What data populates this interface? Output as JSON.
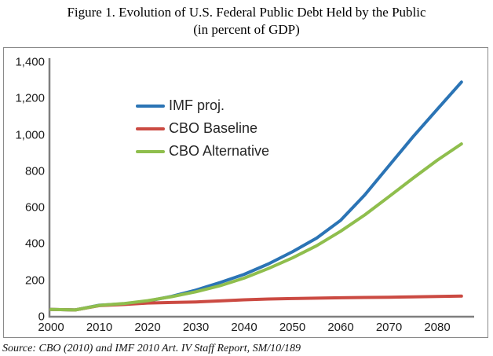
{
  "title": {
    "line1": "Figure 1. Evolution of U.S. Federal Public Debt Held by the Public",
    "line2": "(in percent of GDP)"
  },
  "source": "Source: CBO (2010) and IMF 2010 Art. IV Staff Report, SM/10/189",
  "colors": {
    "imf_blue": "#2B74B5",
    "cbo_baseline_red": "#CB4A42",
    "cbo_alternative_green": "#8FBE4D",
    "axis_gray": "#7f7f7f",
    "frame_gray": "#8a8a8a",
    "text_dark": "#1c1c1c"
  },
  "chart_data": {
    "type": "line",
    "title": "Figure 1. Evolution of U.S. Federal Public Debt Held by the Public (in percent of GDP)",
    "xlabel": "",
    "ylabel": "",
    "xlim": [
      2000,
      2085
    ],
    "ylim": [
      0,
      1400
    ],
    "grid": false,
    "legend_position": "upper-left-inside",
    "x": [
      2000,
      2005,
      2010,
      2015,
      2020,
      2025,
      2030,
      2035,
      2040,
      2045,
      2050,
      2055,
      2060,
      2065,
      2070,
      2075,
      2080,
      2085
    ],
    "series": [
      {
        "name": "IMF proj.",
        "color": "#2B74B5",
        "values": [
          40,
          37,
          63,
          71,
          86,
          112,
          146,
          188,
          233,
          290,
          357,
          432,
          530,
          670,
          830,
          990,
          1140,
          1290
        ]
      },
      {
        "name": "CBO Baseline",
        "color": "#CB4A42",
        "values": [
          40,
          37,
          61,
          67,
          75,
          78,
          81,
          87,
          93,
          97,
          100,
          102,
          104,
          106,
          107,
          109,
          111,
          113
        ]
      },
      {
        "name": "CBO Alternative",
        "color": "#8FBE4D",
        "values": [
          40,
          37,
          62,
          72,
          88,
          110,
          137,
          170,
          212,
          265,
          323,
          390,
          470,
          560,
          660,
          762,
          860,
          950
        ]
      }
    ],
    "yticks": [
      {
        "value": 0,
        "label": "0"
      },
      {
        "value": 200,
        "label": "200"
      },
      {
        "value": 400,
        "label": "400"
      },
      {
        "value": 600,
        "label": "600"
      },
      {
        "value": 800,
        "label": "800"
      },
      {
        "value": 1000,
        "label": "1,000"
      },
      {
        "value": 1200,
        "label": "1,200"
      },
      {
        "value": 1400,
        "label": "1,400"
      }
    ],
    "xticks": [
      {
        "value": 2000,
        "label": "2000"
      },
      {
        "value": 2010,
        "label": "2010"
      },
      {
        "value": 2020,
        "label": "2020"
      },
      {
        "value": 2030,
        "label": "2030"
      },
      {
        "value": 2040,
        "label": "2040"
      },
      {
        "value": 2050,
        "label": "2050"
      },
      {
        "value": 2060,
        "label": "2060"
      },
      {
        "value": 2070,
        "label": "2070"
      },
      {
        "value": 2080,
        "label": "2080"
      }
    ]
  }
}
